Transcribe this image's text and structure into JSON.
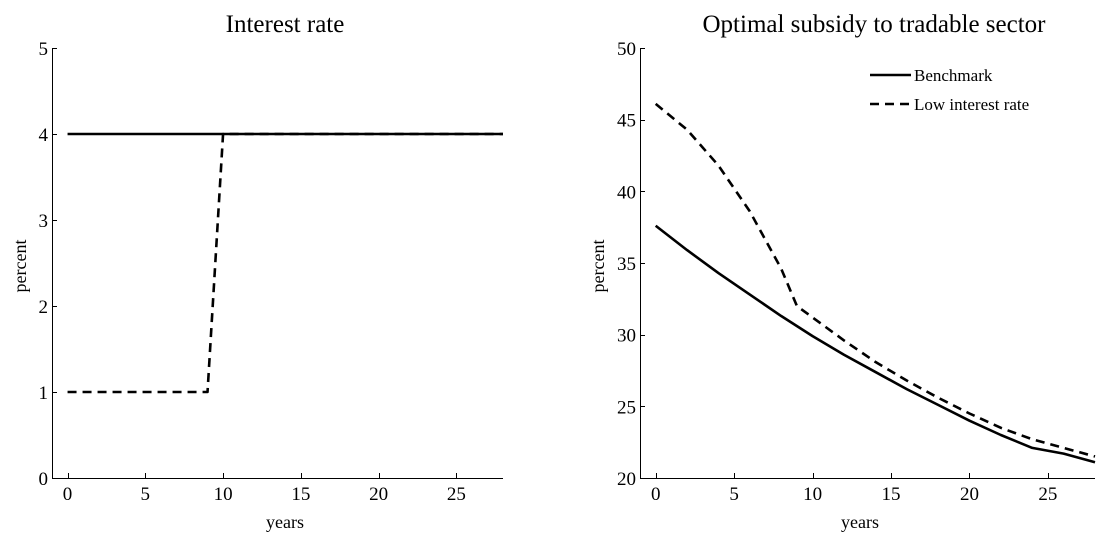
{
  "chart_data": [
    {
      "type": "line",
      "title": "Interest rate",
      "xlabel": "years",
      "ylabel": "percent",
      "xlim": [
        -1,
        28
      ],
      "ylim": [
        0,
        5
      ],
      "xticks": [
        0,
        5,
        10,
        15,
        20,
        25
      ],
      "yticks": [
        0,
        1,
        2,
        3,
        4,
        5
      ],
      "grid": false,
      "series": [
        {
          "style": "solid",
          "x": [
            0,
            28
          ],
          "y": [
            4,
            4
          ]
        },
        {
          "style": "dashed",
          "x": [
            0,
            9,
            10,
            28
          ],
          "y": [
            1,
            1,
            4,
            4
          ]
        }
      ]
    },
    {
      "type": "line",
      "title": "Optimal subsidy to tradable sector",
      "xlabel": "years",
      "ylabel": "percent",
      "xlim": [
        -1,
        28
      ],
      "ylim": [
        20,
        50
      ],
      "xticks": [
        0,
        5,
        10,
        15,
        20,
        25
      ],
      "yticks": [
        20,
        25,
        30,
        35,
        40,
        45,
        50
      ],
      "grid": false,
      "legend": "top-right",
      "series": [
        {
          "name": "Benchmark",
          "style": "solid",
          "x": [
            0,
            2,
            4,
            6,
            8,
            10,
            12,
            14,
            16,
            18,
            20,
            22,
            24,
            26,
            28
          ],
          "y": [
            37.6,
            35.9,
            34.3,
            32.8,
            31.3,
            29.9,
            28.6,
            27.4,
            26.2,
            25.1,
            24.0,
            23.0,
            22.1,
            21.7,
            21.1
          ]
        },
        {
          "name": "Low interest rate",
          "style": "dashed",
          "x": [
            0,
            2,
            4,
            6,
            8,
            9,
            10,
            12,
            14,
            16,
            18,
            20,
            22,
            24,
            26,
            28
          ],
          "y": [
            46.1,
            44.3,
            41.8,
            38.6,
            34.6,
            32.0,
            31.2,
            29.6,
            28.1,
            26.8,
            25.6,
            24.5,
            23.5,
            22.7,
            22.1,
            21.5
          ]
        }
      ]
    }
  ]
}
